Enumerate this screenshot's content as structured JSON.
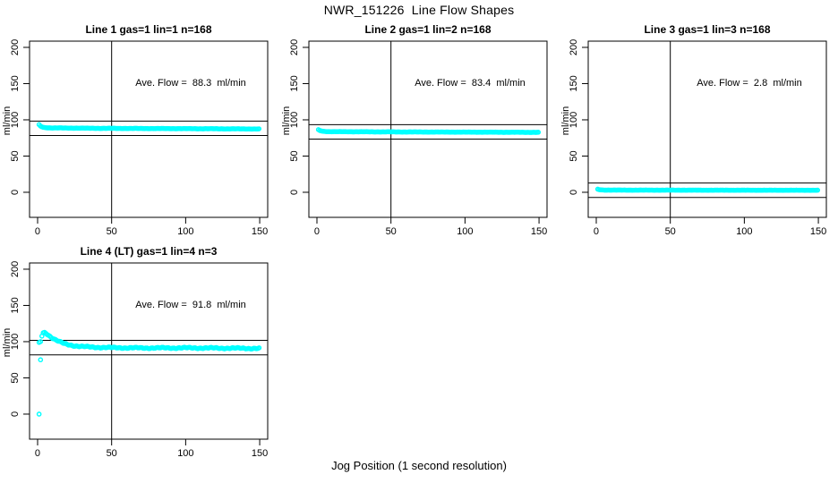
{
  "figure": {
    "title": "NWR_151226  Line Flow Shapes",
    "xlabel": "Jog Position (1 second resolution)",
    "background_color": "#ffffff",
    "axis_color": "#000000",
    "point_color": "#00ffff"
  },
  "chart_data": [
    {
      "type": "scatter",
      "title": "Line 1 gas=1 lin=1 n=168",
      "ylabel": "ml/min",
      "n": 168,
      "ave_flow": 88.3,
      "ave_label": "Ave. Flow =  88.3  ml/min",
      "x_ticks": [
        0,
        50,
        100,
        150
      ],
      "y_ticks": [
        0,
        50,
        100,
        150,
        200
      ],
      "x_range": [
        0,
        150
      ],
      "y_range": [
        0,
        200
      ],
      "ref_lines_y": [
        98.3,
        78.3
      ],
      "vline_x": 50,
      "series": {
        "x_start": 1,
        "x_end": 150,
        "x_step": 0.9,
        "noise": 0.25,
        "profile": [
          [
            1,
            93.2
          ],
          [
            2,
            91.2
          ],
          [
            4,
            89.5
          ],
          [
            8,
            88.9
          ],
          [
            40,
            88.3
          ],
          [
            150,
            87.4
          ]
        ],
        "outliers": []
      }
    },
    {
      "type": "scatter",
      "title": "Line 2 gas=1 lin=2 n=168",
      "ylabel": "ml/min",
      "n": 168,
      "ave_flow": 83.4,
      "ave_label": "Ave. Flow =  83.4  ml/min",
      "x_ticks": [
        0,
        50,
        100,
        150
      ],
      "y_ticks": [
        0,
        50,
        100,
        150,
        200
      ],
      "x_range": [
        0,
        150
      ],
      "y_range": [
        0,
        200
      ],
      "ref_lines_y": [
        93.4,
        73.4
      ],
      "vline_x": 50,
      "series": {
        "x_start": 1,
        "x_end": 150,
        "x_step": 0.9,
        "noise": 0.2,
        "profile": [
          [
            1,
            86.3
          ],
          [
            2,
            85.2
          ],
          [
            4,
            84.2
          ],
          [
            8,
            83.7
          ],
          [
            40,
            83.4
          ],
          [
            150,
            82.7
          ]
        ],
        "outliers": []
      }
    },
    {
      "type": "scatter",
      "title": "Line 3 gas=1 lin=3 n=168",
      "ylabel": "ml/min",
      "n": 168,
      "ave_flow": 2.8,
      "ave_label": "Ave. Flow =  2.8  ml/min",
      "x_ticks": [
        0,
        50,
        100,
        150
      ],
      "y_ticks": [
        0,
        50,
        100,
        150,
        200
      ],
      "x_range": [
        0,
        150
      ],
      "y_range": [
        0,
        200
      ],
      "ref_lines_y": [
        12.8,
        -7.2
      ],
      "vline_x": 50,
      "series": {
        "x_start": 1,
        "x_end": 150,
        "x_step": 0.9,
        "noise": 0.15,
        "profile": [
          [
            1,
            4.2
          ],
          [
            2,
            3.6
          ],
          [
            5,
            3.1
          ],
          [
            20,
            3.0
          ],
          [
            150,
            2.8
          ]
        ],
        "outliers": []
      }
    },
    {
      "type": "scatter",
      "title": "Line 4 (LT) gas=1 lin=4 n=3",
      "ylabel": "ml/min",
      "n": 3,
      "ave_flow": 91.8,
      "ave_label": "Ave. Flow =  91.8  ml/min",
      "x_ticks": [
        0,
        50,
        100,
        150
      ],
      "y_ticks": [
        0,
        50,
        100,
        150,
        200
      ],
      "x_range": [
        0,
        150
      ],
      "y_range": [
        0,
        200
      ],
      "ref_lines_y": [
        101.8,
        81.8
      ],
      "vline_x": 50,
      "series": {
        "x_start": 2,
        "x_end": 150,
        "x_step": 0.9,
        "noise": 1.0,
        "profile": [
          [
            2,
            100
          ],
          [
            3,
            109
          ],
          [
            4,
            113
          ],
          [
            5,
            112.5
          ],
          [
            6,
            111.5
          ],
          [
            8,
            108
          ],
          [
            10,
            105
          ],
          [
            12,
            102.5
          ],
          [
            14,
            100.5
          ],
          [
            16,
            98.8
          ],
          [
            18,
            97.3
          ],
          [
            20,
            96.2
          ],
          [
            24,
            94.6
          ],
          [
            28,
            93.6
          ],
          [
            32,
            93.0
          ],
          [
            40,
            92.2
          ],
          [
            50,
            91.7
          ],
          [
            70,
            91.3
          ],
          [
            100,
            91.4
          ],
          [
            130,
            91.0
          ],
          [
            150,
            90.6
          ]
        ],
        "outliers": [
          [
            1,
            0
          ],
          [
            1,
            99
          ],
          [
            2,
            75
          ]
        ]
      }
    }
  ]
}
